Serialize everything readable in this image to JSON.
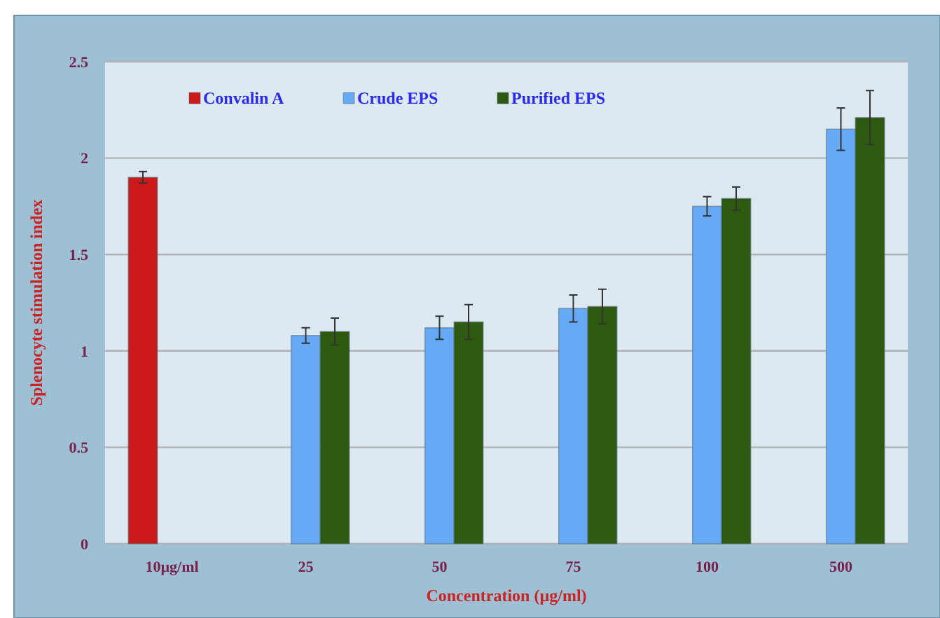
{
  "chart_data": {
    "type": "bar",
    "categories": [
      "10µg/ml",
      "25",
      "50",
      "75",
      "100",
      "500"
    ],
    "xlabel": "Concentration (µg/ml)",
    "ylabel": "Splenocyte stimulation index",
    "series": [
      {
        "name": "Convalin A",
        "color": "#cc1a1a",
        "values": [
          1.9,
          null,
          null,
          null,
          null,
          null
        ],
        "errors": [
          0.03,
          null,
          null,
          null,
          null,
          null
        ]
      },
      {
        "name": "Crude EPS",
        "color": "#66aaf5",
        "values": [
          null,
          1.08,
          1.12,
          1.22,
          1.75,
          2.15
        ],
        "errors": [
          null,
          0.04,
          0.06,
          0.07,
          0.05,
          0.11
        ]
      },
      {
        "name": "Purified EPS",
        "color": "#2e5a10",
        "values": [
          null,
          1.1,
          1.15,
          1.23,
          1.79,
          2.21
        ],
        "errors": [
          null,
          0.07,
          0.09,
          0.09,
          0.06,
          0.14
        ]
      }
    ],
    "ylim": [
      0,
      2.5
    ],
    "yticks": [
      0,
      0.5,
      1,
      1.5,
      2,
      2.5
    ],
    "grid": "y",
    "legend": "top"
  }
}
